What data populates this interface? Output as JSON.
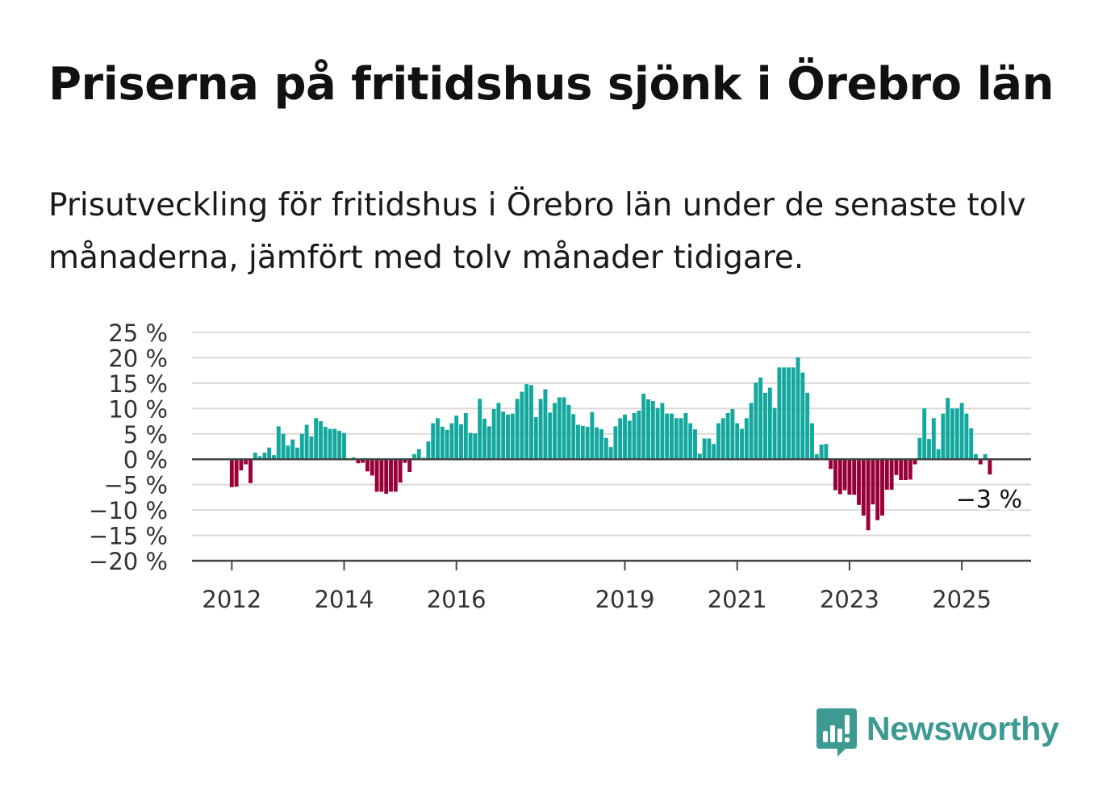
{
  "title": "Priserna på fritidshus sjönk i Örebro län",
  "subtitle": "Prisutveckling för fritidshus i Örebro län under de senaste tolv månaderna, jämfört med tolv månader tidigare.",
  "brand": {
    "name": "Newsworthy",
    "icon": "newsworthy-logo-icon",
    "color": "#3c9a93"
  },
  "colors": {
    "positive": "#12a89d",
    "negative": "#990038",
    "grid": "#d9d9d9",
    "axis": "#444444"
  },
  "chart_data": {
    "type": "bar",
    "title": "Priserna på fritidshus sjönk i Örebro län",
    "x_tick_labels": [
      "2012",
      "2014",
      "2016",
      "2019",
      "2021",
      "2023",
      "2025"
    ],
    "y_tick_labels": [
      "25 %",
      "20 %",
      "15 %",
      "10 %",
      "5 %",
      "0 %",
      "−5 %",
      "−10 %",
      "−15 %",
      "−20 %"
    ],
    "y_ticks": [
      25,
      20,
      15,
      10,
      5,
      0,
      -5,
      -10,
      -15,
      -20
    ],
    "ylim": [
      -20,
      25
    ],
    "grid": true,
    "last_value_label": "−3 %",
    "start_month": "2012-01",
    "values": [
      -5.5,
      -5.4,
      -2.2,
      -1.0,
      -4.7,
      1.3,
      0.6,
      1.3,
      2.3,
      0.8,
      6.5,
      5.0,
      2.7,
      3.9,
      2.3,
      5.0,
      6.8,
      4.5,
      8.1,
      7.5,
      6.4,
      6.0,
      6.0,
      5.6,
      5.2,
      0,
      0.4,
      -0.8,
      -0.7,
      -2.4,
      -3.2,
      -6.4,
      -6.4,
      -6.8,
      -6.4,
      -6.4,
      -4.6,
      -0.7,
      -2.5,
      1.0,
      2.0,
      0.3,
      3.5,
      7.1,
      8.1,
      6.4,
      5.8,
      7.1,
      8.6,
      6.9,
      9.1,
      5.2,
      5.1,
      11.9,
      8.0,
      6.5,
      9.9,
      11.1,
      9.4,
      8.8,
      9.0,
      11.9,
      13.3,
      14.8,
      14.6,
      8.3,
      11.9,
      13.8,
      9.2,
      11.1,
      12.2,
      12.2,
      10.7,
      8.9,
      6.8,
      6.6,
      6.4,
      9.3,
      6.3,
      5.9,
      4.2,
      2.4,
      6.5,
      8.1,
      8.8,
      7.6,
      9.1,
      9.6,
      12.9,
      11.8,
      11.5,
      10.1,
      11.1,
      9.0,
      9.0,
      8.1,
      8.1,
      9.1,
      7.1,
      5.9,
      1.1,
      4.1,
      4.1,
      3.0,
      7.1,
      8.1,
      9.1,
      9.9,
      7.1,
      6.0,
      8.1,
      11.1,
      15.1,
      16.1,
      13.1,
      14.1,
      10.1,
      18.1,
      18.1,
      18.1,
      18.1,
      20.1,
      17.1,
      13.1,
      7.1,
      1.0,
      2.9,
      3.0,
      -1.9,
      -6.1,
      -6.9,
      -6.1,
      -7.0,
      -7.0,
      -9.0,
      -11.1,
      -14.0,
      -8.9,
      -12.0,
      -11.1,
      -6.0,
      -6.0,
      -3.1,
      -4.1,
      -4.1,
      -4.0,
      -1.0,
      4.2,
      10.0,
      4.0,
      8.1,
      2.0,
      9.0,
      12.1,
      10.0,
      10.0,
      11.1,
      9.0,
      6.1,
      1.0,
      -1.0,
      1.0,
      -3.0
    ]
  }
}
